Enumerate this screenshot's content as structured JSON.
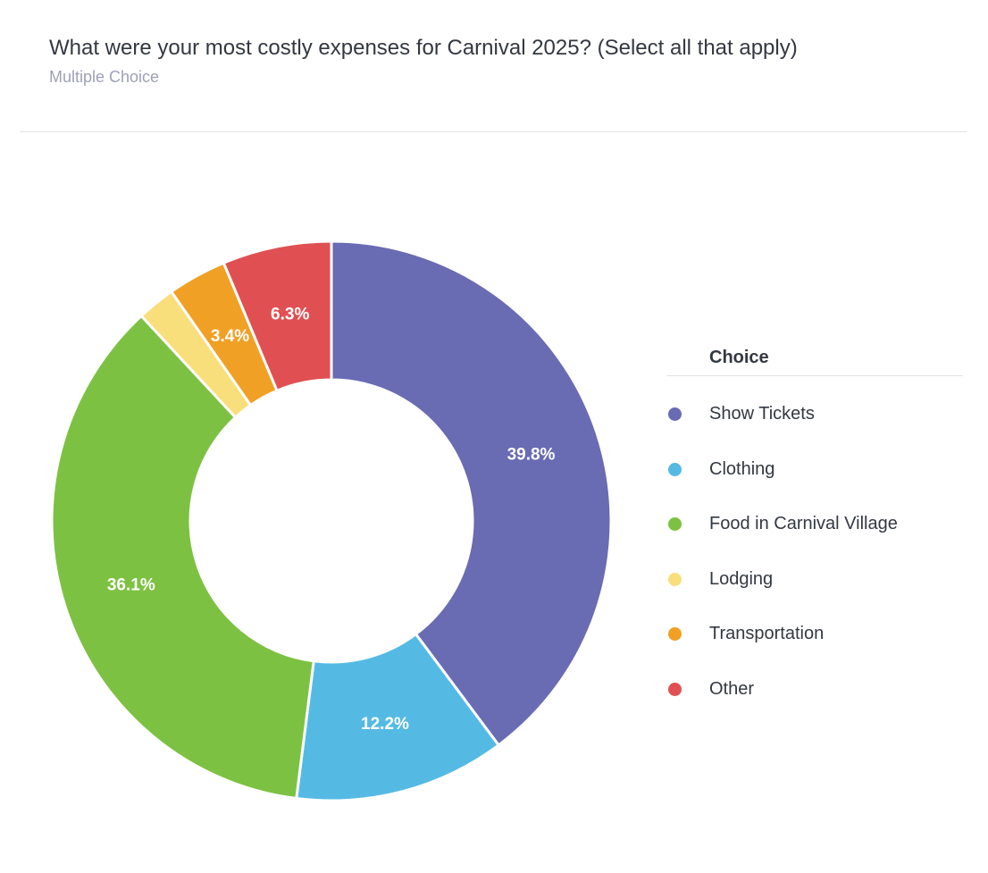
{
  "header": {
    "title": "What were your most costly expenses for Carnival 2025? (Select all that apply)",
    "subtitle": "Multiple Choice"
  },
  "legend": {
    "header": "Choice"
  },
  "chart_data": {
    "type": "pie",
    "donut": true,
    "title": "What were your most costly expenses for Carnival 2025? (Select all that apply)",
    "categories": [
      "Show Tickets",
      "Clothing",
      "Food in Carnival Village",
      "Lodging",
      "Transportation",
      "Other"
    ],
    "values": [
      39.8,
      12.2,
      36.1,
      2.2,
      3.4,
      6.3
    ],
    "labels": [
      "39.8%",
      "12.2%",
      "36.1%",
      "",
      "3.4%",
      "6.3%"
    ],
    "colors": [
      "#696bb3",
      "#54bae4",
      "#7dc142",
      "#f9de7c",
      "#f0a025",
      "#e05052"
    ],
    "legend_position": "right"
  }
}
